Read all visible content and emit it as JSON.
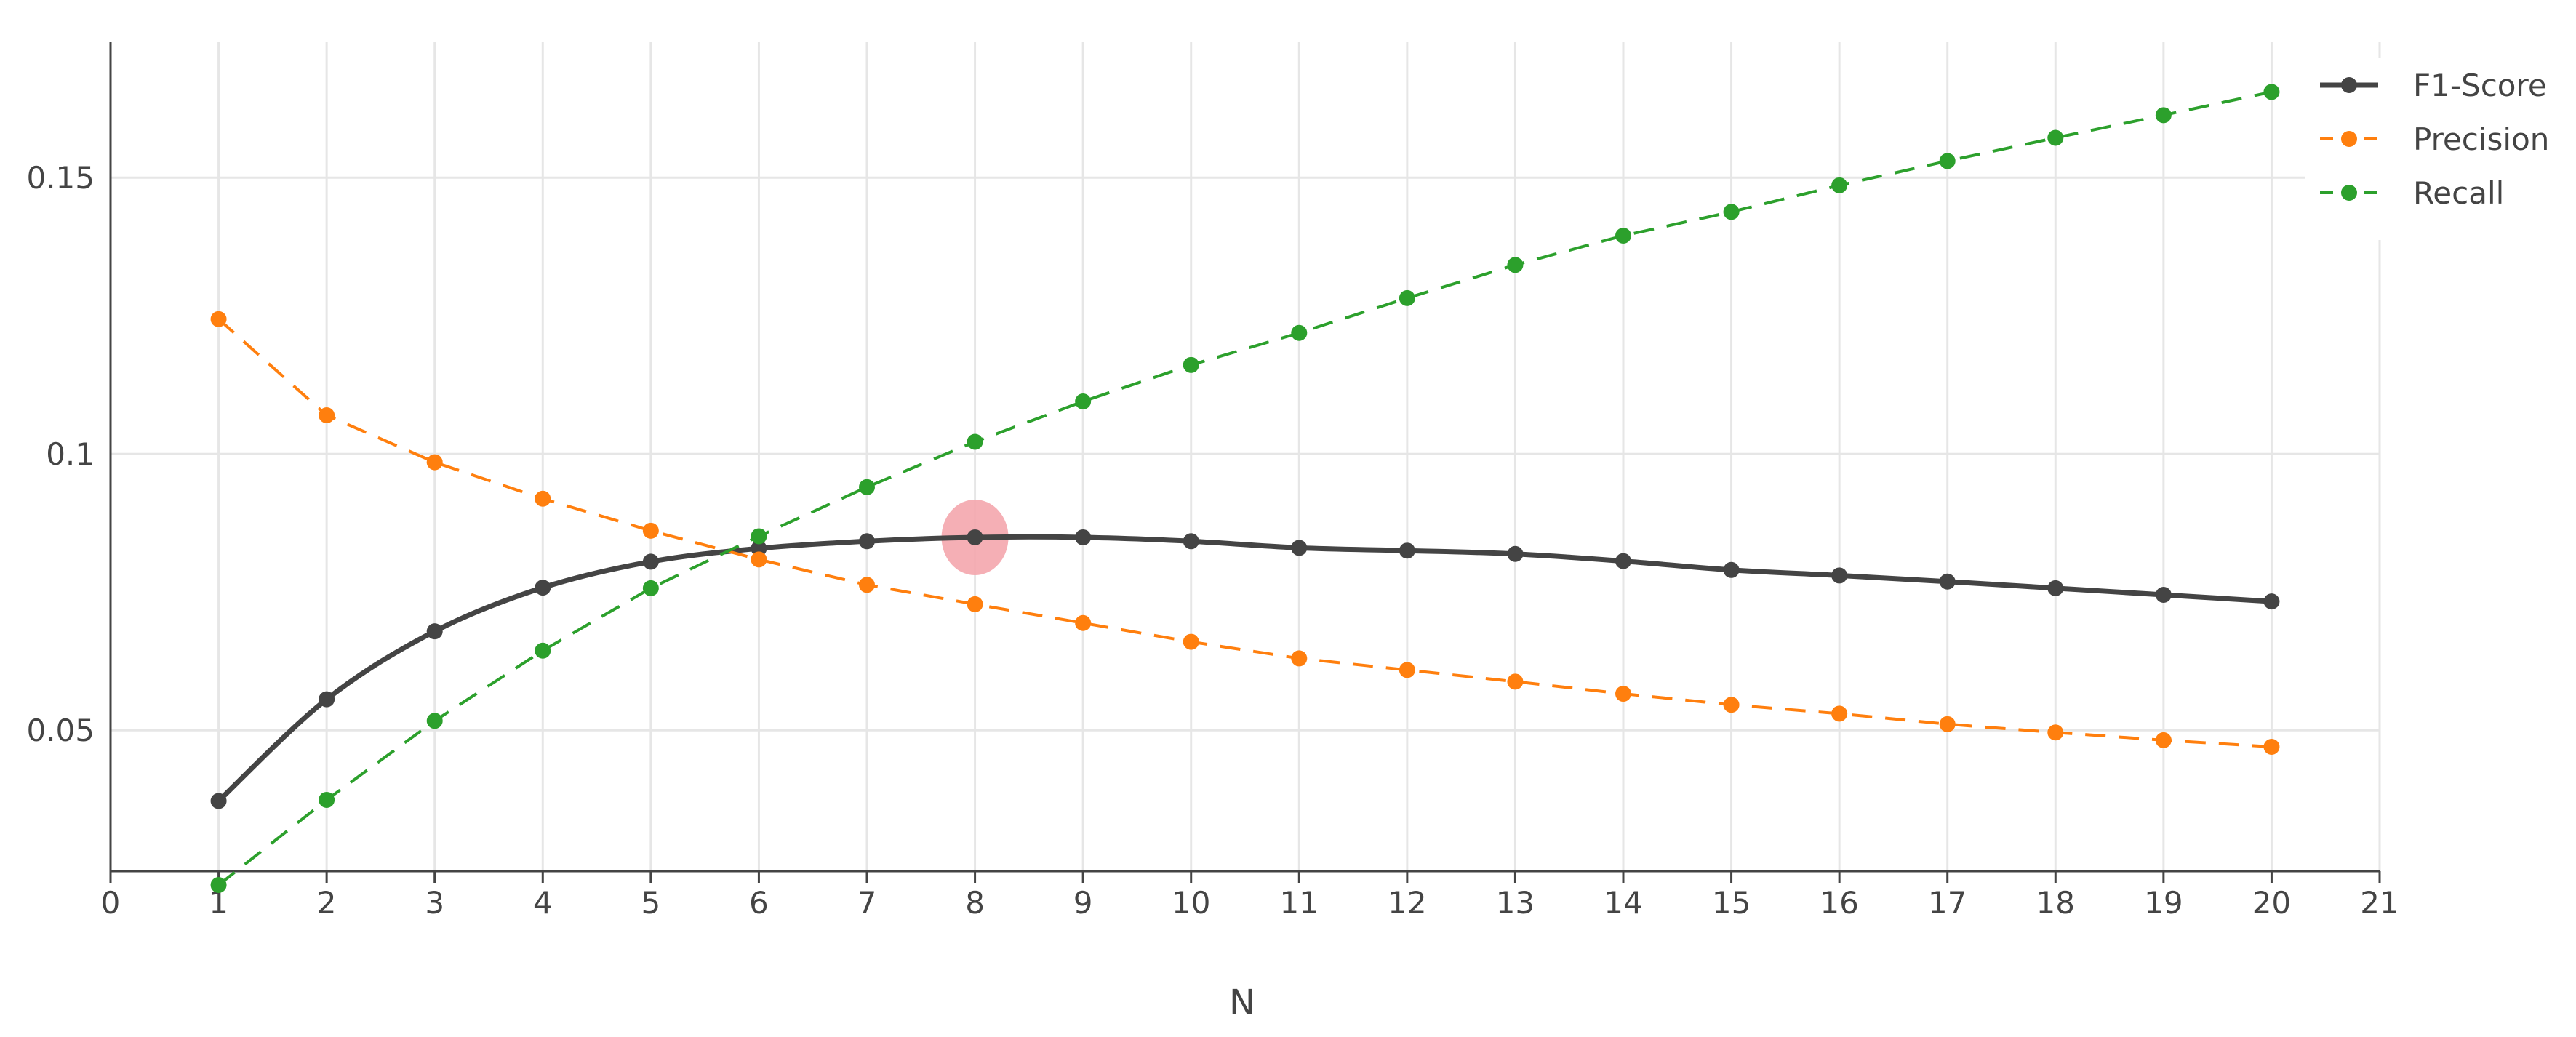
{
  "chart_data": {
    "type": "line",
    "xlabel": "N",
    "ylabel": "",
    "xlim": [
      0,
      21
    ],
    "ylim": [
      0.0245,
      0.1745
    ],
    "x_ticks": [
      0,
      1,
      2,
      3,
      4,
      5,
      6,
      7,
      8,
      9,
      10,
      11,
      12,
      13,
      14,
      15,
      16,
      17,
      18,
      19,
      20,
      21
    ],
    "y_ticks": [
      0.05,
      0.1,
      0.15
    ],
    "y_tick_labels": [
      "0.05",
      "0.1",
      "0.15"
    ],
    "grid": true,
    "legend_position": "top-right",
    "x": [
      1,
      2,
      3,
      4,
      5,
      6,
      7,
      8,
      9,
      10,
      11,
      12,
      13,
      14,
      15,
      16,
      17,
      18,
      19,
      20
    ],
    "series": [
      {
        "name": "F1-Score",
        "color": "#444444",
        "style": "solid-spline",
        "values": [
          0.0372,
          0.0556,
          0.0679,
          0.0758,
          0.0805,
          0.0829,
          0.0842,
          0.0849,
          0.0849,
          0.0842,
          0.083,
          0.0825,
          0.0819,
          0.0806,
          0.079,
          0.078,
          0.0769,
          0.0757,
          0.0745,
          0.0733
        ]
      },
      {
        "name": "Precision",
        "color": "#ff7f0e",
        "style": "dashed",
        "values": [
          0.1244,
          0.107,
          0.0985,
          0.0919,
          0.0861,
          0.0809,
          0.0763,
          0.0728,
          0.0694,
          0.066,
          0.063,
          0.0609,
          0.0588,
          0.0566,
          0.0546,
          0.053,
          0.0511,
          0.0496,
          0.0482,
          0.047
        ]
      },
      {
        "name": "Recall",
        "color": "#2ca02c",
        "style": "dashed",
        "values": [
          0.022,
          0.0374,
          0.0517,
          0.0644,
          0.0757,
          0.0851,
          0.094,
          0.1022,
          0.1095,
          0.1161,
          0.1219,
          0.1282,
          0.1342,
          0.1395,
          0.1438,
          0.1486,
          0.153,
          0.1572,
          0.1613,
          0.1655
        ]
      }
    ],
    "highlight": {
      "series": "F1-Score",
      "x": 8,
      "color": "#f4a6ad"
    }
  }
}
